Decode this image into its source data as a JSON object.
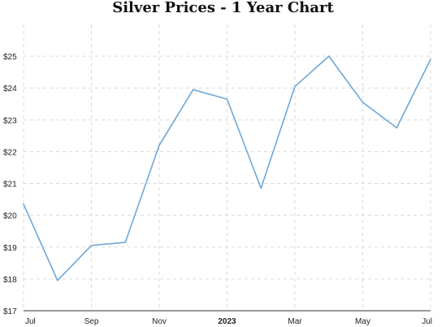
{
  "chart_data": {
    "type": "line",
    "title": "Silver Prices - 1 Year Chart",
    "xlabel": "",
    "ylabel": "",
    "ylim": [
      17,
      26
    ],
    "grid": true,
    "y_ticks": [
      17,
      18,
      19,
      20,
      21,
      22,
      23,
      24,
      25
    ],
    "y_tick_labels": [
      "$17",
      "$18",
      "$19",
      "$20",
      "$21",
      "$22",
      "$23",
      "$24",
      "$25"
    ],
    "x_tick_labels": [
      {
        "label": "Jul",
        "index": 0,
        "bold": false
      },
      {
        "label": "Sep",
        "index": 2,
        "bold": false
      },
      {
        "label": "Nov",
        "index": 4,
        "bold": false
      },
      {
        "label": "2023",
        "index": 6,
        "bold": true
      },
      {
        "label": "Mar",
        "index": 8,
        "bold": false
      },
      {
        "label": "May",
        "index": 10,
        "bold": false
      },
      {
        "label": "Jul",
        "index": 12,
        "bold": false
      }
    ],
    "x": [
      "2022-07",
      "2022-08",
      "2022-09",
      "2022-10",
      "2022-11",
      "2022-12",
      "2023-01",
      "2023-02",
      "2023-03",
      "2023-04",
      "2023-05",
      "2023-06",
      "2023-07"
    ],
    "series": [
      {
        "values": [
          20.35,
          17.95,
          19.05,
          19.15,
          22.2,
          23.95,
          23.65,
          20.85,
          24.05,
          25.0,
          23.55,
          22.75,
          24.9
        ],
        "color": "#6fa7d6"
      }
    ]
  }
}
